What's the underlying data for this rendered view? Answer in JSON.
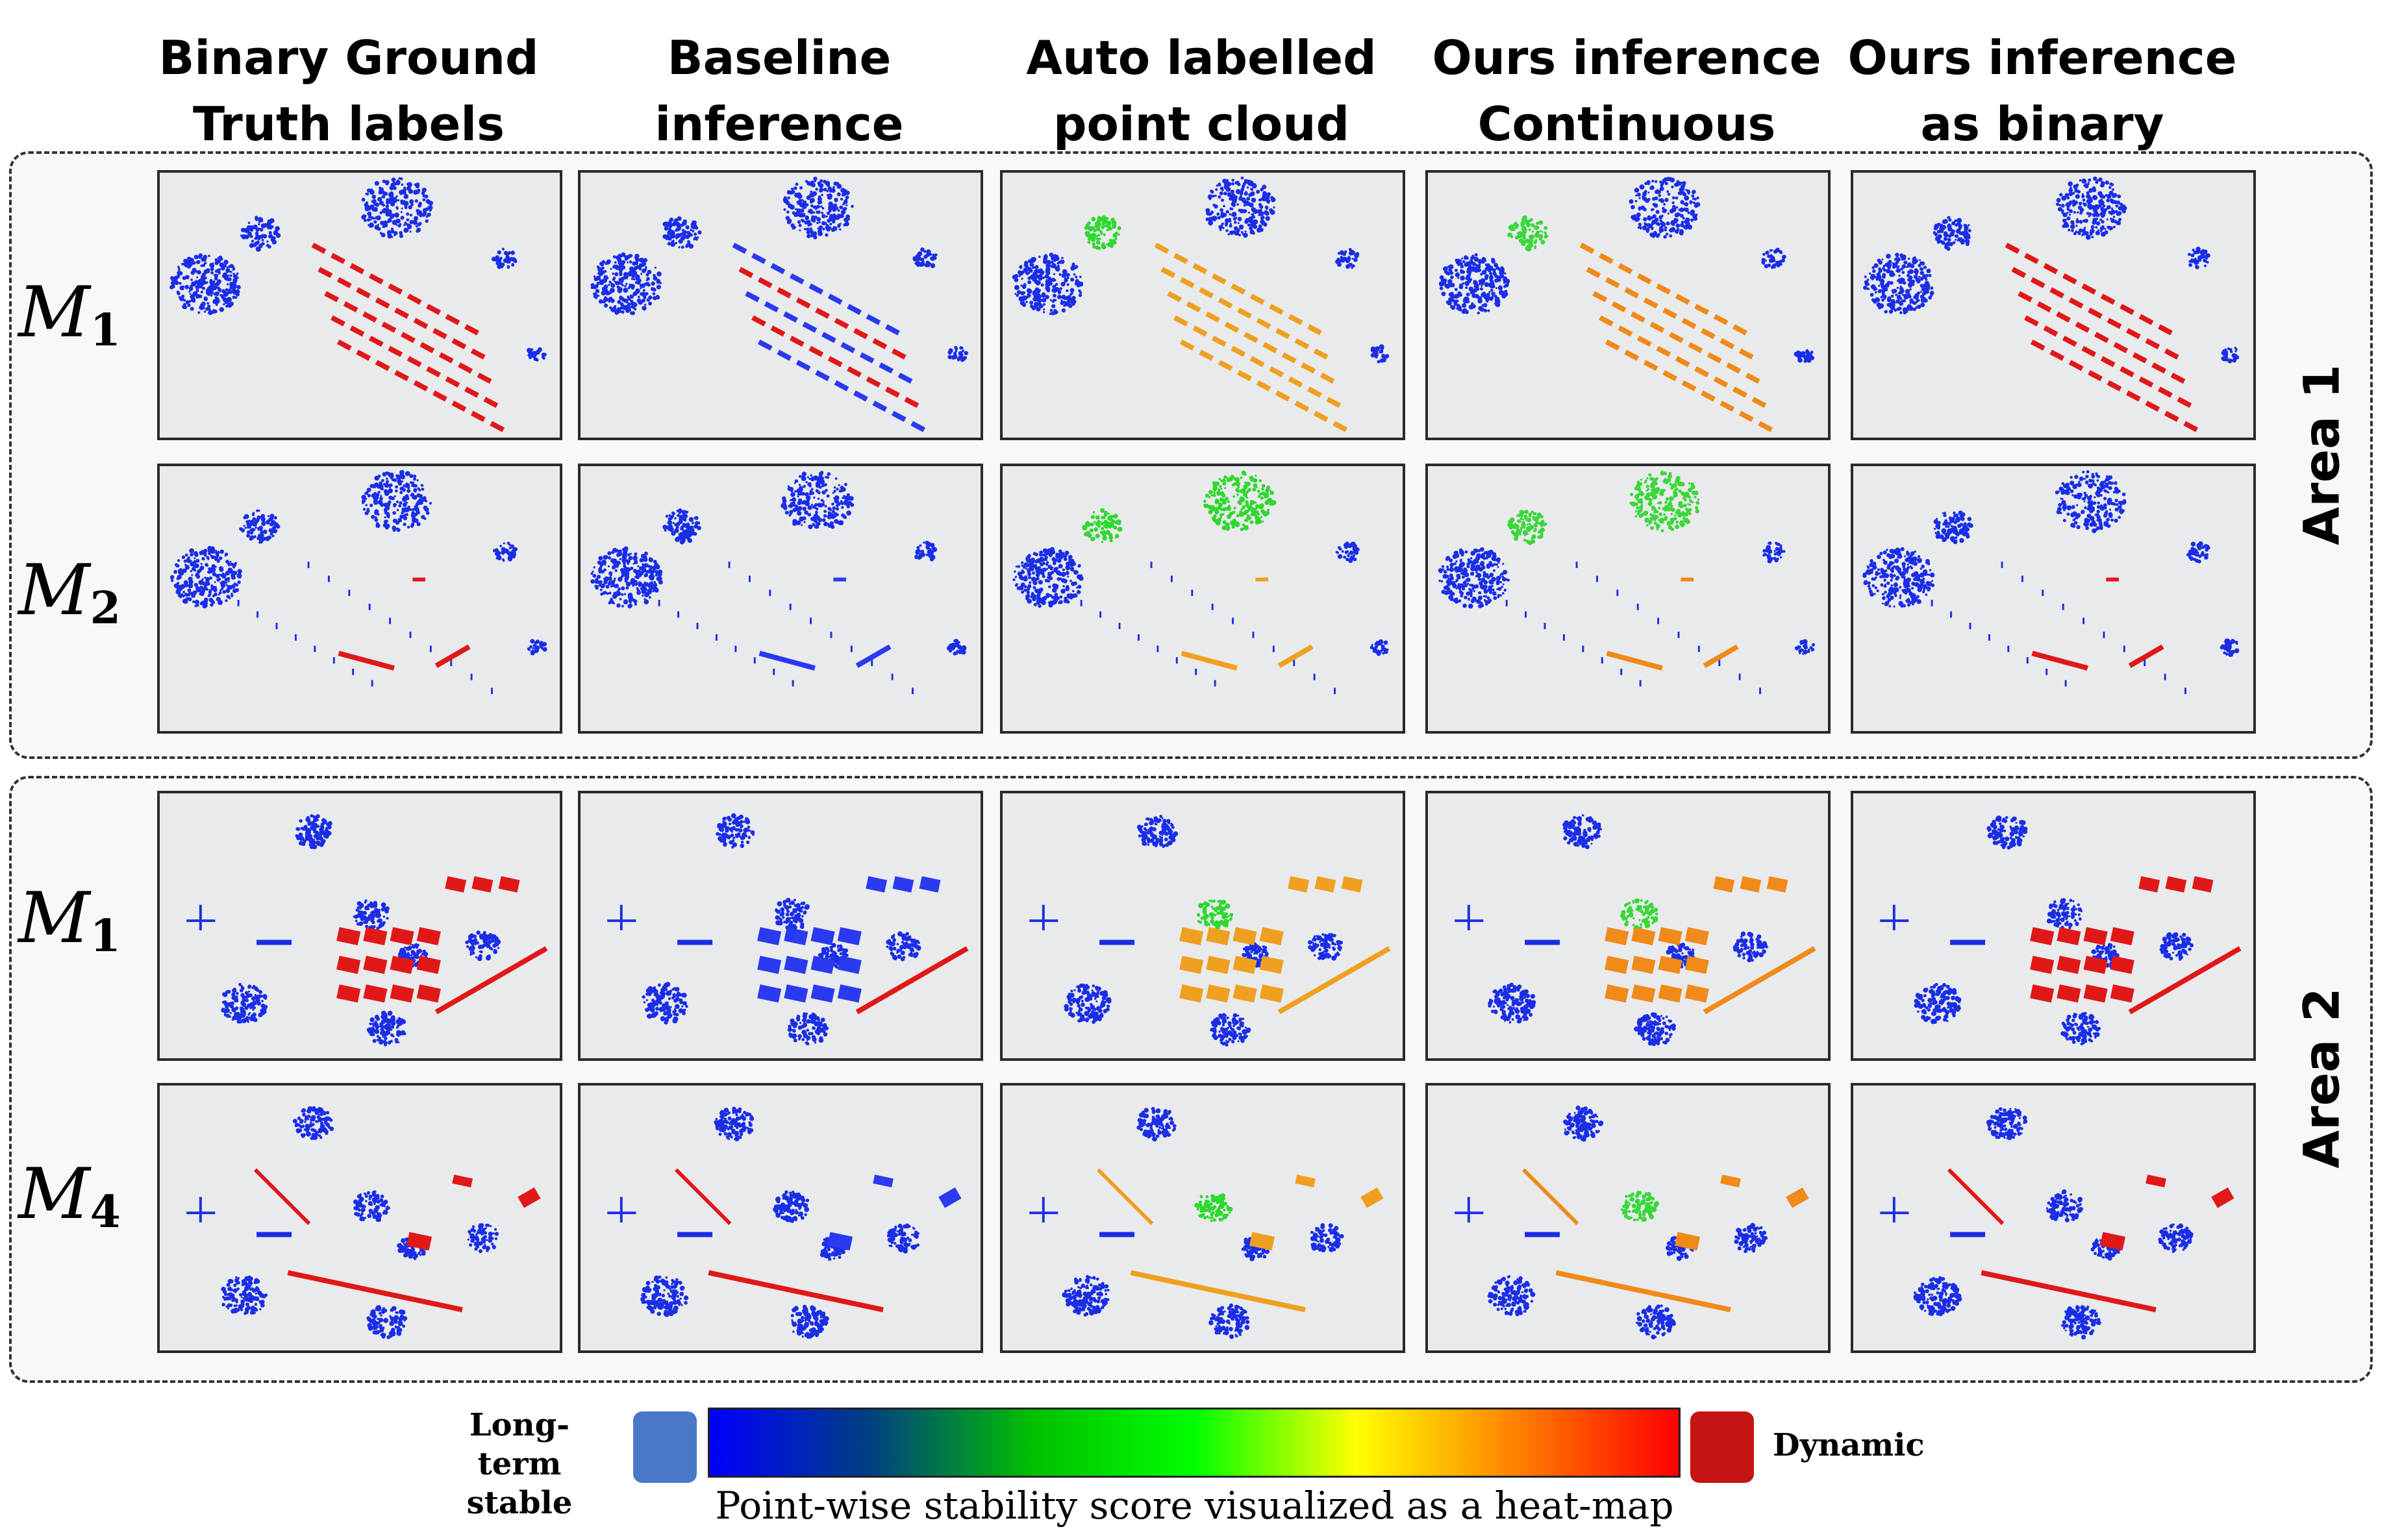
{
  "columns": [
    {
      "line1": "Binary Ground",
      "line2": "Truth labels"
    },
    {
      "line1": "Baseline",
      "line2": "inference"
    },
    {
      "line1": "Auto labelled",
      "line2": "point cloud"
    },
    {
      "line1": "Ours inference",
      "line2": "Continuous"
    },
    {
      "line1": "Ours inference",
      "line2": "as binary"
    }
  ],
  "areas": [
    {
      "label": "Area 1",
      "rows": [
        {
          "symbol": "M",
          "sub": "1"
        },
        {
          "symbol": "M",
          "sub": "2"
        }
      ]
    },
    {
      "label": "Area 2",
      "rows": [
        {
          "symbol": "M",
          "sub": "1"
        },
        {
          "symbol": "M",
          "sub": "4"
        }
      ]
    }
  ],
  "legend": {
    "stable_line1": "Long-term",
    "stable_line2": "stable",
    "dynamic": "Dynamic",
    "stable_color": "#4a78c8",
    "dynamic_color": "#c41414",
    "gradient_colors": [
      "#0000ff",
      "#004080",
      "#00c000",
      "#00ff00",
      "#ffff00",
      "#ff8000",
      "#ff0000"
    ],
    "caption": "Point-wise stability score visualized as a heat-map"
  },
  "panel_styles": {
    "binary_gt": {
      "veg": "#1a2ee6",
      "obj": "#e01818"
    },
    "baseline": {
      "veg": "#1a2ee6",
      "obj": "#2a3af0",
      "mix": "#e01818"
    },
    "auto_labelled": {
      "veg": "#1a2ee6",
      "hi": "#2ed82e",
      "obj": "#f0a020"
    },
    "ours_continuous": {
      "veg": "#1a2ee6",
      "hi": "#39d839",
      "obj": "#f08a18"
    },
    "ours_binary": {
      "veg": "#1a2ee6",
      "obj": "#e01818"
    }
  }
}
